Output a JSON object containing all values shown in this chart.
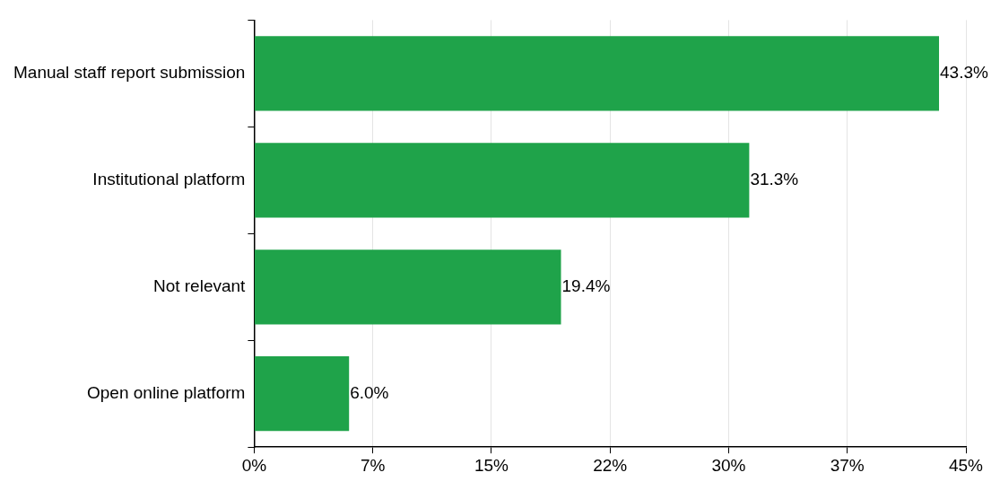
{
  "chart_data": {
    "type": "bar",
    "orientation": "horizontal",
    "categories": [
      "Manual staff report submission",
      "Institutional platform",
      "Not relevant",
      "Open online platform"
    ],
    "values": [
      43.3,
      31.3,
      19.4,
      6.0
    ],
    "value_labels": [
      "43.3%",
      "31.3%",
      "19.4%",
      "6.0%"
    ],
    "color": "#1fa34a",
    "xlim": [
      0,
      45
    ],
    "xticks": [
      {
        "value": 0,
        "label": "0%"
      },
      {
        "value": 7.5,
        "label": "7%"
      },
      {
        "value": 15,
        "label": "15%"
      },
      {
        "value": 22.5,
        "label": "22%"
      },
      {
        "value": 30,
        "label": "30%"
      },
      {
        "value": 37.5,
        "label": "37%"
      },
      {
        "value": 45,
        "label": "45%"
      }
    ],
    "grid": "x"
  }
}
